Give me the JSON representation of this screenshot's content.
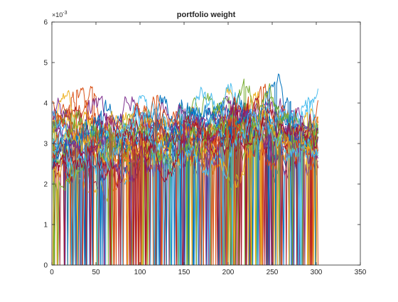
{
  "chart_data": {
    "type": "line",
    "title": "portfolio weight",
    "xlabel": "",
    "ylabel": "",
    "y_exponent_label": "×10",
    "y_exponent_power": "-3",
    "xlim": [
      0,
      350
    ],
    "ylim": [
      0,
      0.006
    ],
    "xticks": [
      0,
      50,
      100,
      150,
      200,
      250,
      300,
      350
    ],
    "yticks": [
      0,
      0.001,
      0.002,
      0.003,
      0.004,
      0.005,
      0.006
    ],
    "xtick_labels": [
      "0",
      "50",
      "100",
      "150",
      "200",
      "250",
      "300",
      "350"
    ],
    "ytick_labels": [
      "0",
      "1",
      "2",
      "3",
      "4",
      "5",
      "6"
    ],
    "grid": false,
    "legend": "none",
    "x_range_of_series": [
      1,
      302
    ],
    "series_count_rendered": 28,
    "colors": [
      "#0072BD",
      "#D95319",
      "#EDB120",
      "#7E2F8E",
      "#77AC30",
      "#4DBEEE",
      "#A2142F"
    ],
    "series_envelope": {
      "x": [
        0,
        25,
        50,
        75,
        100,
        125,
        150,
        175,
        200,
        225,
        250,
        275,
        300
      ],
      "typical_band_low": [
        0.002,
        0.0021,
        0.002,
        0.0021,
        0.002,
        0.0022,
        0.0021,
        0.0022,
        0.0023,
        0.0022,
        0.0021,
        0.0022,
        0.0021
      ],
      "typical_band_high": [
        0.0041,
        0.0042,
        0.0041,
        0.0042,
        0.0043,
        0.0041,
        0.0041,
        0.0044,
        0.0045,
        0.0046,
        0.0043,
        0.0044,
        0.0044
      ],
      "max": [
        0.005,
        0.0046,
        0.0045,
        0.0047,
        0.0047,
        0.0045,
        0.0043,
        0.0049,
        0.0052,
        0.0052,
        0.0049,
        0.0049,
        0.0046
      ],
      "min": [
        0,
        0,
        0,
        0,
        0,
        0,
        0,
        0,
        0,
        0,
        0,
        0,
        0
      ]
    }
  }
}
